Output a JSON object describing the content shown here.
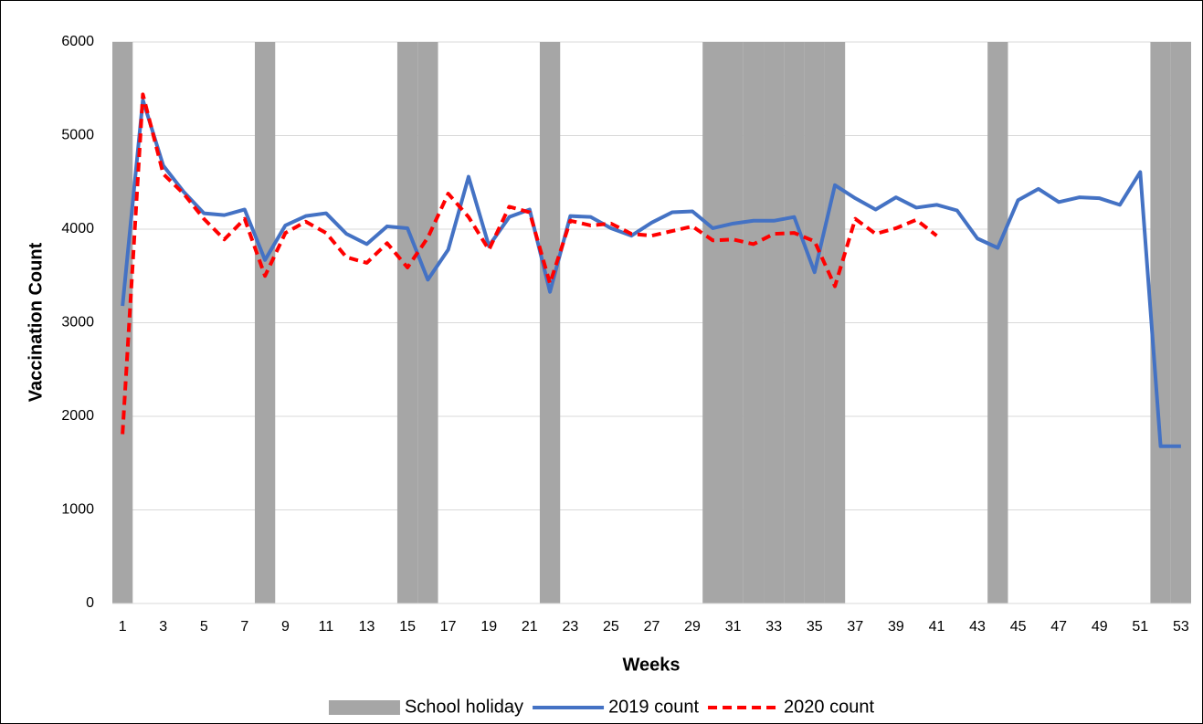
{
  "chart_data": {
    "type": "line",
    "x_label": "Weeks",
    "y_label": "Vaccination Count",
    "categories": [
      1,
      null,
      3,
      null,
      5,
      null,
      7,
      null,
      9,
      null,
      11,
      null,
      13,
      null,
      15,
      null,
      17,
      null,
      19,
      null,
      21,
      null,
      23,
      null,
      25,
      null,
      27,
      null,
      29,
      null,
      31,
      null,
      33,
      null,
      35,
      null,
      37,
      null,
      39,
      null,
      41,
      null,
      43,
      null,
      45,
      null,
      47,
      null,
      49,
      null,
      51,
      null,
      53
    ],
    "ylim": [
      0,
      6000
    ],
    "yticks": [
      0,
      1000,
      2000,
      3000,
      4000,
      5000,
      6000
    ],
    "grid": true,
    "legend": "bottom",
    "series": [
      {
        "name": "School holiday",
        "type": "bar",
        "color": "#a6a6a6",
        "values": [
          6000,
          null,
          null,
          null,
          null,
          null,
          null,
          6000,
          null,
          null,
          null,
          null,
          null,
          null,
          6000,
          6000,
          null,
          null,
          null,
          null,
          null,
          6000,
          null,
          null,
          null,
          null,
          null,
          null,
          null,
          6000,
          6000,
          6000,
          6000,
          6000,
          6000,
          6000,
          null,
          null,
          null,
          null,
          null,
          null,
          null,
          6000,
          null,
          null,
          null,
          null,
          null,
          null,
          null,
          6000,
          6000
        ]
      },
      {
        "name": "2019 count",
        "type": "line",
        "color": "#4472c4",
        "dashed": false,
        "values": [
          3180,
          5380,
          4680,
          4400,
          4170,
          4150,
          4210,
          3670,
          4040,
          4140,
          4170,
          3950,
          3840,
          4030,
          4010,
          3460,
          3780,
          4560,
          3820,
          4130,
          4210,
          3330,
          4140,
          4130,
          4010,
          3930,
          4070,
          4180,
          4190,
          4010,
          4060,
          4090,
          4090,
          4130,
          3540,
          4470,
          4330,
          4210,
          4340,
          4230,
          4260,
          4200,
          3900,
          3800,
          4310,
          4430,
          4290,
          4340,
          4330,
          4260,
          4610,
          1680,
          1680
        ]
      },
      {
        "name": "2020 count",
        "type": "line",
        "color": "#ff0000",
        "dashed": true,
        "values": [
          1810,
          5440,
          4590,
          4380,
          4110,
          3890,
          4110,
          3500,
          3960,
          4080,
          3960,
          3700,
          3640,
          3850,
          3590,
          3910,
          4380,
          4130,
          3780,
          4240,
          4180,
          3420,
          4090,
          4040,
          4060,
          3950,
          3930,
          3980,
          4030,
          3880,
          3890,
          3840,
          3950,
          3960,
          3870,
          3390,
          4110,
          3950,
          4010,
          4100,
          3930,
          null,
          null,
          null,
          null,
          null,
          null,
          null,
          null,
          null,
          null,
          null,
          null
        ]
      }
    ]
  }
}
